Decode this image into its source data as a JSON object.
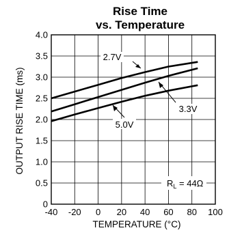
{
  "chart_data": {
    "type": "line",
    "title": "Rise Time",
    "subtitle": "vs. Temperature",
    "xlabel": "TEMPERATURE (°C)",
    "ylabel": "OUTPUT RISE TIME (ms)",
    "xlim": [
      -40,
      100
    ],
    "ylim": [
      0,
      4.0
    ],
    "x_ticks": [
      -40,
      -20,
      0,
      20,
      40,
      60,
      80,
      100
    ],
    "y_ticks": [
      0,
      0.5,
      1.0,
      1.5,
      2.0,
      2.5,
      3.0,
      3.5,
      4.0
    ],
    "x_tick_labels": [
      "-40",
      "-20",
      "0",
      "20",
      "40",
      "60",
      "80",
      "100"
    ],
    "y_tick_labels": [
      "0",
      "0.5",
      "1.0",
      "1.5",
      "2.0",
      "2.5",
      "3.0",
      "3.5",
      "4.0"
    ],
    "grid": true,
    "series": [
      {
        "name": "2.7V",
        "x": [
          -40,
          -20,
          0,
          20,
          40,
          60,
          85
        ],
        "y": [
          2.5,
          2.66,
          2.82,
          2.98,
          3.12,
          3.25,
          3.36
        ]
      },
      {
        "name": "3.3V",
        "x": [
          -40,
          -20,
          0,
          20,
          40,
          60,
          85
        ],
        "y": [
          2.19,
          2.36,
          2.53,
          2.7,
          2.87,
          3.03,
          3.21
        ]
      },
      {
        "name": "5.0V",
        "x": [
          -40,
          -20,
          0,
          20,
          40,
          60,
          85
        ],
        "y": [
          1.96,
          2.12,
          2.27,
          2.42,
          2.56,
          2.68,
          2.81
        ]
      }
    ],
    "annotation": {
      "prefix": "R",
      "subscript": "L",
      "suffix": " = 44Ω"
    },
    "line_color": "#000000"
  }
}
